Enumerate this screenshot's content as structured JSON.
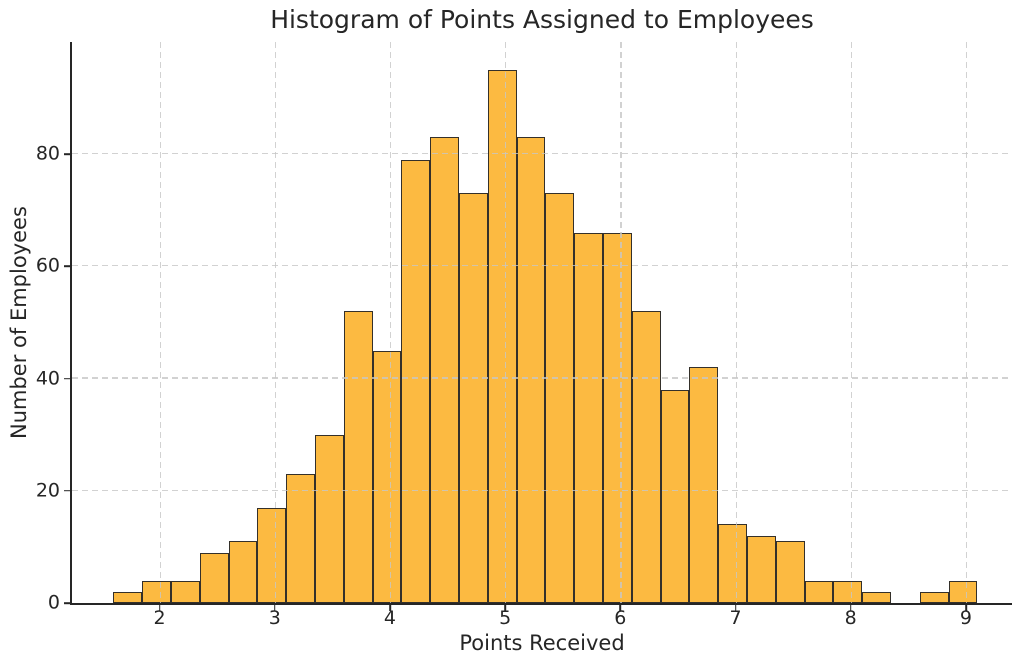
{
  "chart_data": {
    "type": "bar",
    "subtype": "histogram",
    "title": "Histogram of Points Assigned to Employees",
    "xlabel": "Points Received",
    "ylabel": "Number of Employees",
    "bin_start": 1.6,
    "bin_width": 0.25,
    "counts": [
      2,
      4,
      4,
      9,
      11,
      17,
      23,
      30,
      52,
      45,
      79,
      83,
      73,
      95,
      83,
      73,
      66,
      66,
      52,
      38,
      42,
      14,
      12,
      11,
      4,
      4,
      2,
      0,
      2,
      4
    ],
    "x_ticks": [
      2,
      3,
      4,
      5,
      6,
      7,
      8,
      9
    ],
    "y_ticks": [
      0,
      20,
      40,
      60,
      80
    ],
    "xlim": [
      1.24,
      9.4
    ],
    "ylim": [
      0,
      100
    ],
    "grid": true,
    "grid_style": "dashed",
    "legend": "none",
    "colors": {
      "bar_fill": "#fcba41",
      "bar_edge": "#34302a",
      "grid": "#c6c6c6",
      "axis": "#262626",
      "text": "#262626",
      "background": "#ffffff"
    }
  }
}
